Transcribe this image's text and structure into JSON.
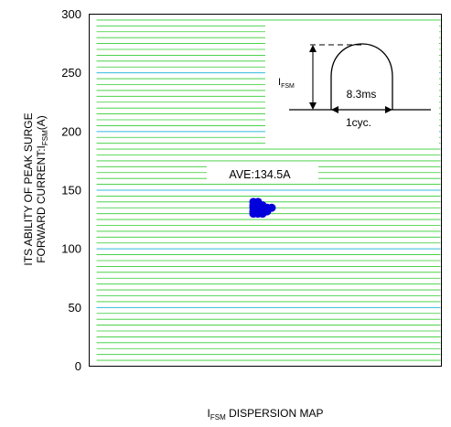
{
  "chart_data": {
    "type": "scatter",
    "title": "",
    "xlabel": {
      "main": "I",
      "sub": "FSM",
      "rest": " DISPERSION MAP"
    },
    "ylabel": {
      "line1": "ITS ABILITY OF PEAK SURGE",
      "line2_pre": "FORWARD CURRENT:I",
      "line2_sub": "FSM",
      "line2_post": "(A)"
    },
    "ylim": [
      0,
      300
    ],
    "yticks": [
      "0",
      "50",
      "100",
      "150",
      "200",
      "250",
      "300"
    ],
    "grid": true,
    "annotation": "AVE:134.5A",
    "points": [
      [
        1,
        140
      ],
      [
        2,
        140
      ],
      [
        1,
        137
      ],
      [
        2,
        137
      ],
      [
        3,
        137
      ],
      [
        1,
        135
      ],
      [
        2,
        135
      ],
      [
        3,
        135
      ],
      [
        4,
        135
      ],
      [
        5,
        135
      ],
      [
        1,
        132
      ],
      [
        2,
        132
      ],
      [
        3,
        132
      ],
      [
        4,
        132
      ],
      [
        1,
        130
      ],
      [
        2,
        130
      ],
      [
        3,
        130
      ]
    ],
    "inset": {
      "symbol_main": "I",
      "symbol_sub": "FSM",
      "width_label": "8.3ms",
      "period_label": "1cyc."
    },
    "colors": {
      "marker": "#0000dd",
      "grid_major": "#33bbdd",
      "grid_minor": "#33cc33",
      "frame": "#000000"
    }
  }
}
